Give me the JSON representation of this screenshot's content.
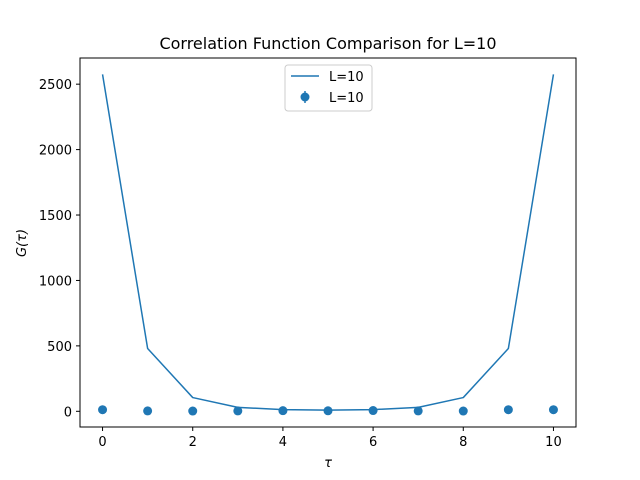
{
  "chart_data": {
    "type": "line",
    "title": "Correlation Function Comparison for L=10",
    "xlabel": "τ",
    "ylabel": "G(τ)",
    "xlim": [
      -0.5,
      10.5
    ],
    "ylim": [
      -120,
      2700
    ],
    "xticks": [
      0,
      2,
      4,
      6,
      8,
      10
    ],
    "yticks": [
      0,
      500,
      1000,
      1500,
      2000,
      2500
    ],
    "grid": false,
    "legend_position": "top-center",
    "series": [
      {
        "name": "L=10",
        "kind": "line",
        "color": "#1f77b4",
        "x": [
          0,
          1,
          2,
          3,
          4,
          5,
          6,
          7,
          8,
          9,
          10
        ],
        "y": [
          2575,
          480,
          105,
          30,
          13,
          9,
          13,
          30,
          105,
          480,
          2575
        ]
      },
      {
        "name": "L=10",
        "kind": "errorbar-scatter",
        "color": "#1f77b4",
        "x": [
          0,
          1,
          2,
          3,
          4,
          5,
          6,
          7,
          8,
          9,
          10
        ],
        "y": [
          12,
          3,
          2,
          3,
          5,
          4,
          6,
          3,
          2,
          12,
          12
        ]
      }
    ]
  }
}
